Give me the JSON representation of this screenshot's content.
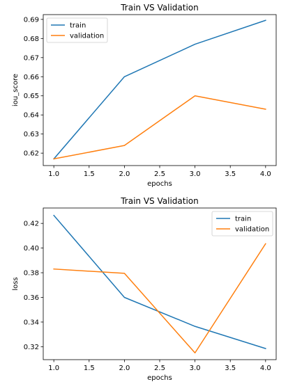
{
  "chart_data": [
    {
      "type": "line",
      "title": "Train VS Validation",
      "xlabel": "epochs",
      "ylabel": "iou_score",
      "x": [
        1.0,
        2.0,
        3.0,
        4.0
      ],
      "xlim": [
        0.85,
        4.15
      ],
      "ylim": [
        0.6135,
        0.6925
      ],
      "xticks": [
        1.0,
        1.5,
        2.0,
        2.5,
        3.0,
        3.5,
        4.0
      ],
      "xtick_labels": [
        "1.0",
        "1.5",
        "2.0",
        "2.5",
        "3.0",
        "3.5",
        "4.0"
      ],
      "yticks": [
        0.62,
        0.63,
        0.64,
        0.65,
        0.66,
        0.67,
        0.68,
        0.69
      ],
      "ytick_labels": [
        "0.62",
        "0.63",
        "0.64",
        "0.65",
        "0.66",
        "0.67",
        "0.68",
        "0.69"
      ],
      "grid": false,
      "legend_position": "top-left",
      "series": [
        {
          "name": "train",
          "color": "#1f77b4",
          "values": [
            0.617,
            0.66,
            0.677,
            0.6895
          ]
        },
        {
          "name": "validation",
          "color": "#ff7f0e",
          "values": [
            0.617,
            0.624,
            0.65,
            0.643
          ]
        }
      ]
    },
    {
      "type": "line",
      "title": "Train VS Validation",
      "xlabel": "epochs",
      "ylabel": "loss",
      "x": [
        1.0,
        2.0,
        3.0,
        4.0
      ],
      "xlim": [
        0.85,
        4.15
      ],
      "ylim": [
        0.3095,
        0.4325
      ],
      "xticks": [
        1.0,
        1.5,
        2.0,
        2.5,
        3.0,
        3.5,
        4.0
      ],
      "xtick_labels": [
        "1.0",
        "1.5",
        "2.0",
        "2.5",
        "3.0",
        "3.5",
        "4.0"
      ],
      "yticks": [
        0.32,
        0.34,
        0.36,
        0.38,
        0.4,
        0.42
      ],
      "ytick_labels": [
        "0.32",
        "0.34",
        "0.36",
        "0.38",
        "0.40",
        "0.42"
      ],
      "grid": false,
      "legend_position": "top-right",
      "series": [
        {
          "name": "train",
          "color": "#1f77b4",
          "values": [
            0.4265,
            0.36,
            0.3365,
            0.3185
          ]
        },
        {
          "name": "validation",
          "color": "#ff7f0e",
          "values": [
            0.383,
            0.3795,
            0.315,
            0.4035
          ]
        }
      ]
    }
  ]
}
